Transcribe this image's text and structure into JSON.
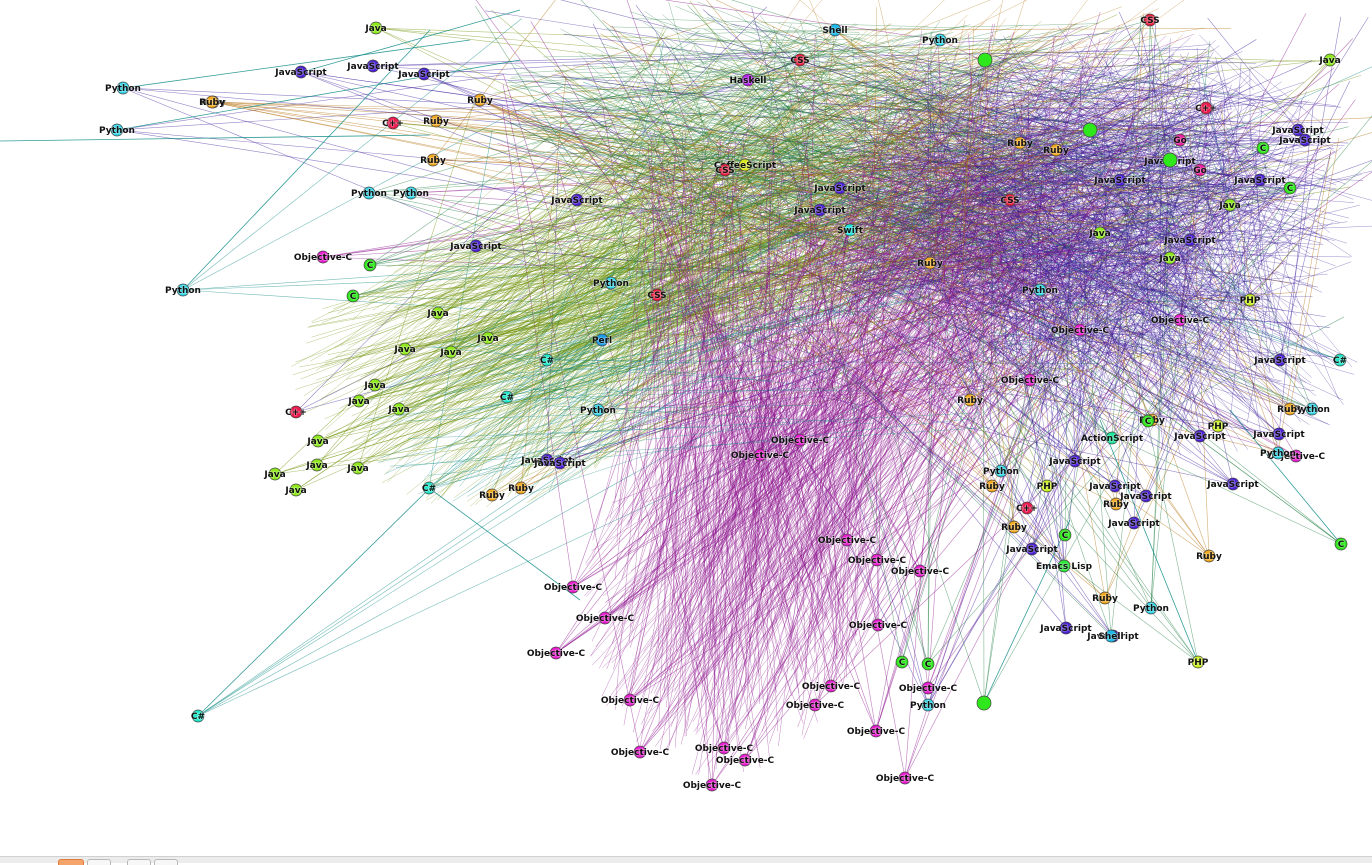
{
  "graph": {
    "colors": {
      "Python": "#2fd6e8",
      "JavaScript": "#4a1fd6",
      "Ruby": "#f2a81c",
      "Java": "#8ee81c",
      "Objective-C": "#e81ccf",
      "C": "#2fe81c",
      "C#": "#1ce8c8",
      "C++": "#e81c4f",
      "PHP": "#c8f01c",
      "CSS": "#e81c3c",
      "Go": "#e81c9c",
      "Shell": "#1cb8e8",
      "Haskell": "#b01ce8",
      "CoffeeScript": "#d8e81c",
      "Emacs Lisp": "#2ce83c",
      "ActionScript": "#1ce89c",
      "Swift": "#1ce8e0",
      "Perl": "#1c9ce8"
    },
    "edge_colors": [
      "#6b8f00",
      "#8a0c8a",
      "#00857f",
      "#3a1a9a",
      "#b06a00",
      "#1a7a3a"
    ],
    "nodes": [
      {
        "lang": "Python",
        "label": "Python"
      },
      {
        "lang": "Python",
        "label": "Python"
      },
      {
        "lang": "Python",
        "label": "Python"
      },
      {
        "lang": "Python",
        "label": "Python"
      },
      {
        "lang": "Python",
        "label": "Python"
      },
      {
        "lang": "Ruby",
        "label": "Ruby"
      },
      {
        "lang": "Ruby",
        "label": "Ruby"
      },
      {
        "lang": "Ruby",
        "label": "Ruby"
      },
      {
        "lang": "Ruby",
        "label": "Ruby"
      },
      {
        "lang": "Ruby",
        "label": "Ruby"
      },
      {
        "lang": "JavaScript",
        "label": "JavaScript"
      },
      {
        "lang": "JavaScript",
        "label": "JavaScript"
      },
      {
        "lang": "JavaScript",
        "label": "JavaScript"
      },
      {
        "lang": "JavaScript",
        "label": "JavaScript"
      },
      {
        "lang": "JavaScript",
        "label": "JavaScript"
      },
      {
        "lang": "Objective-C",
        "label": "Objective-C"
      },
      {
        "lang": "C",
        "label": "C"
      },
      {
        "lang": "C",
        "label": "C"
      },
      {
        "lang": "C++",
        "label": "C++"
      },
      {
        "lang": "C#",
        "label": "C#"
      },
      {
        "lang": "Java",
        "label": "Java"
      },
      {
        "lang": "Java",
        "label": "Java"
      },
      {
        "lang": "Java",
        "label": "Java"
      },
      {
        "lang": "Java",
        "label": "Java"
      },
      {
        "lang": "Java",
        "label": "Java"
      },
      {
        "lang": "Java",
        "label": "Java"
      },
      {
        "lang": "Java",
        "label": "Java"
      },
      {
        "lang": "Java",
        "label": "Java"
      },
      {
        "lang": "Java",
        "label": "Java"
      },
      {
        "lang": "Java",
        "label": "Java"
      },
      {
        "lang": "Java",
        "label": "Java"
      },
      {
        "lang": "Java",
        "label": "Java"
      },
      {
        "lang": "Java",
        "label": "Java"
      },
      {
        "lang": "C#",
        "label": "C#"
      },
      {
        "lang": "C#",
        "label": "C#"
      },
      {
        "lang": "C#",
        "label": "C#"
      },
      {
        "lang": "C++",
        "label": "C++"
      },
      {
        "lang": "Ruby",
        "label": "Ruby"
      },
      {
        "lang": "Ruby",
        "label": "Ruby"
      },
      {
        "lang": "JavaScript",
        "label": "JavaScript"
      },
      {
        "lang": "Objective-C",
        "label": "Objective-C"
      },
      {
        "lang": "Objective-C",
        "label": "Objective-C"
      },
      {
        "lang": "Objective-C",
        "label": "Objective-C"
      },
      {
        "lang": "Objective-C",
        "label": "Objective-C"
      },
      {
        "lang": "Objective-C",
        "label": "Objective-C"
      },
      {
        "lang": "Objective-C",
        "label": "Objective-C"
      },
      {
        "lang": "Objective-C",
        "label": "Objective-C"
      },
      {
        "lang": "Objective-C",
        "label": "Objective-C"
      },
      {
        "lang": "Objective-C",
        "label": "Objective-C"
      },
      {
        "lang": "Objective-C",
        "label": "Objective-C"
      },
      {
        "lang": "Objective-C",
        "label": "Objective-C"
      },
      {
        "lang": "Objective-C",
        "label": "Objective-C"
      },
      {
        "lang": "Objective-C",
        "label": "Objective-C"
      },
      {
        "lang": "Objective-C",
        "label": "Objective-C"
      },
      {
        "lang": "Objective-C",
        "label": "Objective-C"
      },
      {
        "lang": "Objective-C",
        "label": "Objective-C"
      },
      {
        "lang": "Objective-C",
        "label": "Objective-C"
      },
      {
        "lang": "Python",
        "label": "Python"
      },
      {
        "lang": "C",
        "label": "C"
      },
      {
        "lang": "C",
        "label": "C"
      },
      {
        "lang": "Objective-C",
        "label": "Objective-C"
      },
      {
        "lang": "Objective-C",
        "label": "Objective-C"
      },
      {
        "lang": "C",
        "label": ""
      },
      {
        "lang": "JavaScript",
        "label": "JavaScript"
      },
      {
        "lang": "Emacs Lisp",
        "label": "Emacs Lisp"
      },
      {
        "lang": "C",
        "label": "C"
      },
      {
        "lang": "Ruby",
        "label": "Ruby"
      },
      {
        "lang": "Python",
        "label": "Python"
      },
      {
        "lang": "JavaScript",
        "label": "JavaScript"
      },
      {
        "lang": "JavaScript",
        "label": "JavaScript"
      },
      {
        "lang": "Shell",
        "label": "Shell"
      },
      {
        "lang": "PHP",
        "label": "PHP"
      },
      {
        "lang": "Ruby",
        "label": "Ruby"
      },
      {
        "lang": "C",
        "label": "C"
      },
      {
        "lang": "JavaScript",
        "label": "JavaScript"
      },
      {
        "lang": "JavaScript",
        "label": "JavaScript"
      },
      {
        "lang": "JavaScript",
        "label": "JavaScript"
      },
      {
        "lang": "Ruby",
        "label": "Ruby"
      },
      {
        "lang": "Ruby",
        "label": "Ruby"
      },
      {
        "lang": "JavaScript",
        "label": "JavaScript"
      },
      {
        "lang": "JavaScript",
        "label": "JavaScript"
      },
      {
        "lang": "ActionScript",
        "label": "ActionScript"
      },
      {
        "lang": "Python",
        "label": "Python"
      },
      {
        "lang": "Ruby",
        "label": "Ruby"
      },
      {
        "lang": "PHP",
        "label": "PHP"
      },
      {
        "lang": "C++",
        "label": "C++"
      },
      {
        "lang": "Objective-C",
        "label": "Objective-C"
      },
      {
        "lang": "Python",
        "label": "Python"
      },
      {
        "lang": "Python",
        "label": "Python"
      },
      {
        "lang": "JavaScript",
        "label": "JavaScript"
      },
      {
        "lang": "JavaScript",
        "label": "JavaScript"
      },
      {
        "lang": "Ruby",
        "label": "Ruby"
      },
      {
        "lang": "Ruby",
        "label": "Ruby"
      },
      {
        "lang": "PHP",
        "label": "PHP"
      },
      {
        "lang": "JavaScript",
        "label": "JavaScript"
      },
      {
        "lang": "C",
        "label": "C"
      },
      {
        "lang": "JavaScript",
        "label": "JavaScript"
      },
      {
        "lang": "JavaScript",
        "label": "JavaScript"
      },
      {
        "lang": "Ruby",
        "label": "Ruby"
      },
      {
        "lang": "Ruby",
        "label": "Ruby"
      },
      {
        "lang": "Ruby",
        "label": "Ruby"
      },
      {
        "lang": "Python",
        "label": "Python"
      },
      {
        "lang": "Java",
        "label": "Java"
      },
      {
        "lang": "Java",
        "label": "Java"
      },
      {
        "lang": "Java",
        "label": "Java"
      },
      {
        "lang": "C",
        "label": "C"
      },
      {
        "lang": "C",
        "label": "C"
      },
      {
        "lang": "C++",
        "label": "C++"
      },
      {
        "lang": "Go",
        "label": "Go"
      },
      {
        "lang": "Go",
        "label": "Go"
      },
      {
        "lang": "Haskell",
        "label": "Haskell"
      },
      {
        "lang": "CoffeeScript",
        "label": "CoffeeScript"
      },
      {
        "lang": "CSS",
        "label": "CSS"
      },
      {
        "lang": "CSS",
        "label": "CSS"
      },
      {
        "lang": "CSS",
        "label": "CSS"
      },
      {
        "lang": "Shell",
        "label": "Shell"
      },
      {
        "lang": "Swift",
        "label": "Swift"
      },
      {
        "lang": "Perl",
        "label": "Perl"
      },
      {
        "lang": "Python",
        "label": "Python"
      },
      {
        "lang": "Python",
        "label": "Python"
      },
      {
        "lang": "JavaScript",
        "label": "JavaScript"
      },
      {
        "lang": "JavaScript",
        "label": "JavaScript"
      },
      {
        "lang": "JavaScript",
        "label": "JavaScript"
      },
      {
        "lang": "PHP",
        "label": "PHP"
      },
      {
        "lang": "C#",
        "label": "C#"
      },
      {
        "lang": "Objective-C",
        "label": "Objective-C"
      },
      {
        "lang": "Objective-C",
        "label": "Objective-C"
      },
      {
        "lang": "Objective-C",
        "label": "Objective-C"
      },
      {
        "lang": "Ruby",
        "label": "Ruby"
      },
      {
        "lang": "Java",
        "label": "Java"
      },
      {
        "lang": "JavaScript",
        "label": "JavaScript"
      },
      {
        "lang": "JavaScript",
        "label": "JavaScript"
      },
      {
        "lang": "JavaScript",
        "label": "JavaScript"
      },
      {
        "lang": "CSS",
        "label": "CSS"
      },
      {
        "lang": "CSS",
        "label": "CSS"
      },
      {
        "lang": "Python",
        "label": "Python"
      },
      {
        "lang": "C",
        "label": ""
      },
      {
        "lang": "C",
        "label": ""
      },
      {
        "lang": "C",
        "label": ""
      },
      {
        "lang": "JavaScript",
        "label": "JavaScript"
      }
    ]
  },
  "toolbar": {
    "items": [
      "",
      "",
      "",
      ""
    ]
  }
}
